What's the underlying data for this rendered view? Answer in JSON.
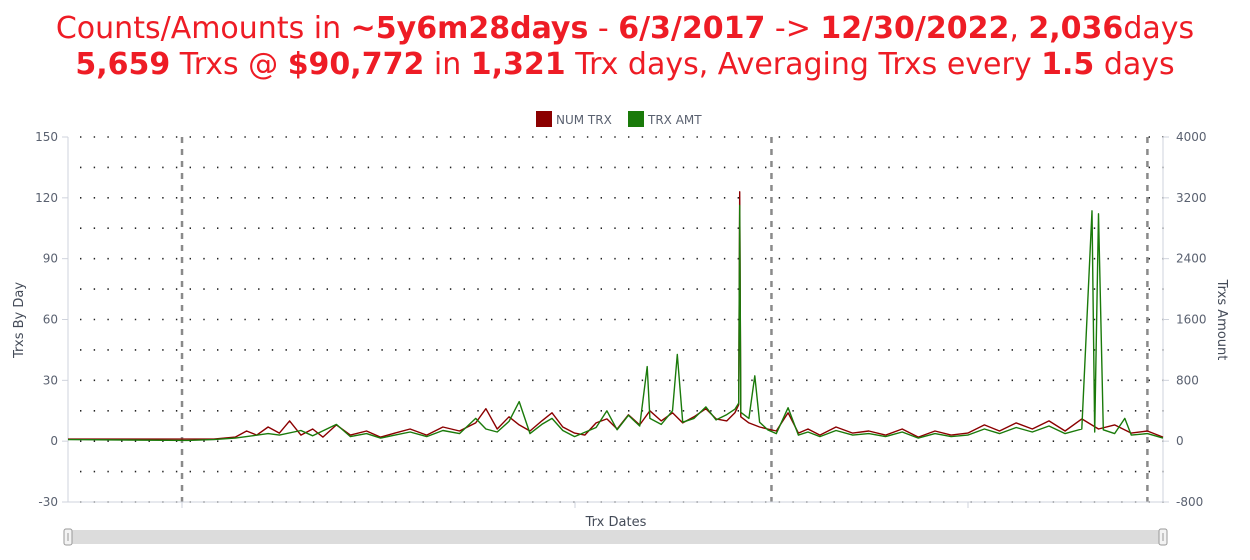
{
  "title": {
    "line1": [
      "Counts/Amounts in ",
      "~5y6m28days",
      " - ",
      "6/3/2017",
      " -> ",
      "12/30/2022",
      ", ",
      "2,036",
      "days"
    ],
    "line2": [
      "5,659",
      " Trxs @ ",
      "$90,772",
      " in ",
      "1,321",
      " Trx days, Averaging Trxs every ",
      "1.5",
      " days"
    ]
  },
  "colors": {
    "title": "#ee1c25",
    "num_trx": "#8b0000",
    "trx_amt": "#1a7a0a"
  },
  "chart_data": {
    "type": "line",
    "title": "",
    "xlabel": "Trx Dates",
    "ylabel": "Trxs By Day",
    "y2label": "Trxs Amount",
    "x_range": [
      "2017-06-03",
      "2022-12-30"
    ],
    "ylim": [
      -30,
      150
    ],
    "y2lim": [
      -800,
      4000
    ],
    "yticks": [
      "150",
      "120",
      "90",
      "60",
      "30",
      "0",
      "-30"
    ],
    "y2ticks": [
      "4000",
      "3200",
      "2400",
      "1600",
      "800",
      "0",
      "-800"
    ],
    "grid": true,
    "legend": {
      "position": "top-center",
      "entries": [
        "NUM TRX",
        "TRX AMT"
      ]
    },
    "year_markers": [
      "2018-01-01",
      "2021-01-01",
      "2022-12-01"
    ],
    "series": [
      {
        "name": "NUM TRX",
        "axis": "left",
        "points": [
          [
            "2017-06-03",
            1
          ],
          [
            "2017-09-01",
            1
          ],
          [
            "2018-01-10",
            1
          ],
          [
            "2018-03-01",
            1
          ],
          [
            "2018-04-10",
            2
          ],
          [
            "2018-05-01",
            5
          ],
          [
            "2018-05-20",
            3
          ],
          [
            "2018-06-10",
            7
          ],
          [
            "2018-07-01",
            4
          ],
          [
            "2018-07-20",
            10
          ],
          [
            "2018-08-10",
            3
          ],
          [
            "2018-09-01",
            6
          ],
          [
            "2018-09-20",
            2
          ],
          [
            "2018-10-15",
            8
          ],
          [
            "2018-11-10",
            3
          ],
          [
            "2018-12-10",
            5
          ],
          [
            "2019-01-05",
            2
          ],
          [
            "2019-02-01",
            4
          ],
          [
            "2019-03-01",
            6
          ],
          [
            "2019-04-01",
            3
          ],
          [
            "2019-05-01",
            7
          ],
          [
            "2019-06-01",
            5
          ],
          [
            "2019-07-01",
            9
          ],
          [
            "2019-07-20",
            16
          ],
          [
            "2019-08-10",
            6
          ],
          [
            "2019-09-01",
            12
          ],
          [
            "2019-09-20",
            8
          ],
          [
            "2019-10-10",
            5
          ],
          [
            "2019-11-01",
            10
          ],
          [
            "2019-11-20",
            14
          ],
          [
            "2019-12-10",
            7
          ],
          [
            "2020-01-01",
            4
          ],
          [
            "2020-01-20",
            3
          ],
          [
            "2020-02-10",
            9
          ],
          [
            "2020-03-01",
            11
          ],
          [
            "2020-03-20",
            6
          ],
          [
            "2020-04-10",
            13
          ],
          [
            "2020-05-01",
            8
          ],
          [
            "2020-05-20",
            15
          ],
          [
            "2020-06-10",
            10
          ],
          [
            "2020-07-01",
            14
          ],
          [
            "2020-07-20",
            9
          ],
          [
            "2020-08-10",
            12
          ],
          [
            "2020-09-01",
            16
          ],
          [
            "2020-09-20",
            11
          ],
          [
            "2020-10-10",
            10
          ],
          [
            "2020-10-25",
            14
          ],
          [
            "2020-11-01",
            18
          ],
          [
            "2020-11-03",
            123
          ],
          [
            "2020-11-05",
            12
          ],
          [
            "2020-11-20",
            9
          ],
          [
            "2020-12-10",
            7
          ],
          [
            "2020-12-25",
            6
          ],
          [
            "2021-01-10",
            5
          ],
          [
            "2021-02-01",
            14
          ],
          [
            "2021-02-20",
            4
          ],
          [
            "2021-03-10",
            6
          ],
          [
            "2021-04-01",
            3
          ],
          [
            "2021-05-01",
            7
          ],
          [
            "2021-06-01",
            4
          ],
          [
            "2021-07-01",
            5
          ],
          [
            "2021-08-01",
            3
          ],
          [
            "2021-09-01",
            6
          ],
          [
            "2021-10-01",
            2
          ],
          [
            "2021-11-01",
            5
          ],
          [
            "2021-12-01",
            3
          ],
          [
            "2022-01-01",
            4
          ],
          [
            "2022-02-01",
            8
          ],
          [
            "2022-03-01",
            5
          ],
          [
            "2022-04-01",
            9
          ],
          [
            "2022-05-01",
            6
          ],
          [
            "2022-06-01",
            10
          ],
          [
            "2022-07-01",
            5
          ],
          [
            "2022-08-01",
            11
          ],
          [
            "2022-09-01",
            6
          ],
          [
            "2022-10-01",
            8
          ],
          [
            "2022-11-01",
            4
          ],
          [
            "2022-12-01",
            5
          ],
          [
            "2022-12-30",
            2
          ]
        ]
      },
      {
        "name": "TRX AMT",
        "axis": "right",
        "points": [
          [
            "2017-06-03",
            20
          ],
          [
            "2018-01-10",
            10
          ],
          [
            "2018-03-01",
            20
          ],
          [
            "2018-04-10",
            40
          ],
          [
            "2018-05-01",
            60
          ],
          [
            "2018-06-10",
            100
          ],
          [
            "2018-07-01",
            80
          ],
          [
            "2018-08-10",
            140
          ],
          [
            "2018-09-01",
            70
          ],
          [
            "2018-10-15",
            220
          ],
          [
            "2018-11-10",
            60
          ],
          [
            "2018-12-10",
            100
          ],
          [
            "2019-01-05",
            40
          ],
          [
            "2019-02-01",
            80
          ],
          [
            "2019-03-01",
            120
          ],
          [
            "2019-04-01",
            60
          ],
          [
            "2019-05-01",
            140
          ],
          [
            "2019-06-01",
            100
          ],
          [
            "2019-07-01",
            300
          ],
          [
            "2019-07-20",
            160
          ],
          [
            "2019-08-10",
            120
          ],
          [
            "2019-09-01",
            260
          ],
          [
            "2019-09-20",
            520
          ],
          [
            "2019-10-10",
            100
          ],
          [
            "2019-11-01",
            220
          ],
          [
            "2019-11-20",
            300
          ],
          [
            "2019-12-10",
            140
          ],
          [
            "2020-01-01",
            60
          ],
          [
            "2020-02-10",
            180
          ],
          [
            "2020-03-01",
            400
          ],
          [
            "2020-03-20",
            150
          ],
          [
            "2020-04-10",
            340
          ],
          [
            "2020-05-01",
            200
          ],
          [
            "2020-05-15",
            980
          ],
          [
            "2020-05-20",
            300
          ],
          [
            "2020-06-10",
            220
          ],
          [
            "2020-07-01",
            400
          ],
          [
            "2020-07-10",
            1140
          ],
          [
            "2020-07-20",
            250
          ],
          [
            "2020-08-10",
            300
          ],
          [
            "2020-09-01",
            450
          ],
          [
            "2020-09-20",
            280
          ],
          [
            "2020-10-10",
            350
          ],
          [
            "2020-10-25",
            420
          ],
          [
            "2020-11-01",
            500
          ],
          [
            "2020-11-03",
            3100
          ],
          [
            "2020-11-05",
            380
          ],
          [
            "2020-11-20",
            300
          ],
          [
            "2020-12-01",
            860
          ],
          [
            "2020-12-10",
            250
          ],
          [
            "2020-12-25",
            150
          ],
          [
            "2021-01-10",
            100
          ],
          [
            "2021-02-01",
            440
          ],
          [
            "2021-02-20",
            80
          ],
          [
            "2021-03-10",
            120
          ],
          [
            "2021-04-01",
            60
          ],
          [
            "2021-05-01",
            140
          ],
          [
            "2021-06-01",
            80
          ],
          [
            "2021-07-01",
            100
          ],
          [
            "2021-08-01",
            60
          ],
          [
            "2021-09-01",
            120
          ],
          [
            "2021-10-01",
            40
          ],
          [
            "2021-11-01",
            100
          ],
          [
            "2021-12-01",
            60
          ],
          [
            "2022-01-01",
            80
          ],
          [
            "2022-02-01",
            160
          ],
          [
            "2022-03-01",
            100
          ],
          [
            "2022-04-01",
            180
          ],
          [
            "2022-05-01",
            120
          ],
          [
            "2022-06-01",
            200
          ],
          [
            "2022-07-01",
            100
          ],
          [
            "2022-08-01",
            160
          ],
          [
            "2022-08-20",
            3030
          ],
          [
            "2022-08-25",
            120
          ],
          [
            "2022-09-01",
            2990
          ],
          [
            "2022-09-10",
            150
          ],
          [
            "2022-10-01",
            100
          ],
          [
            "2022-10-20",
            300
          ],
          [
            "2022-11-01",
            80
          ],
          [
            "2022-12-01",
            100
          ],
          [
            "2022-12-30",
            40
          ]
        ]
      }
    ]
  }
}
